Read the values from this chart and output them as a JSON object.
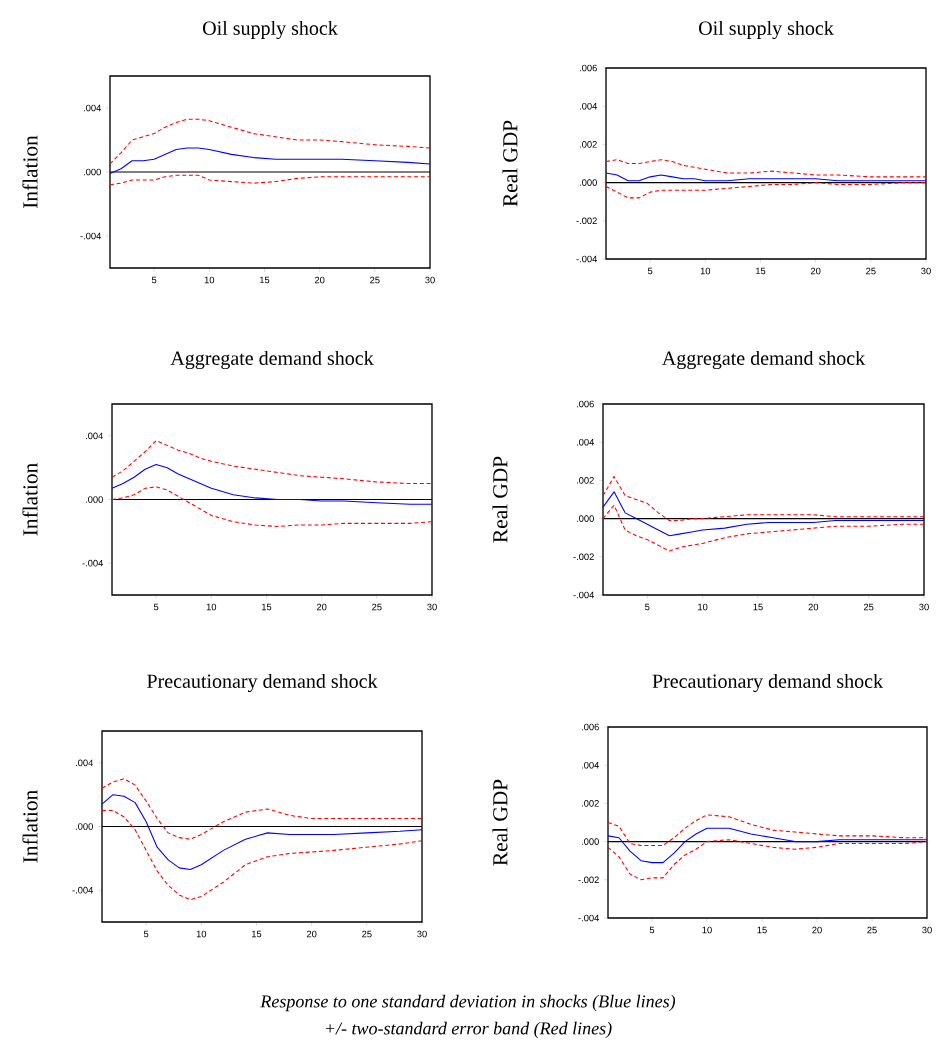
{
  "chart_data": [
    {
      "type": "line",
      "title": "Oil supply shock",
      "ylabel": "Inflation",
      "x": [
        1,
        2,
        3,
        4,
        5,
        6,
        7,
        8,
        9,
        10,
        12,
        14,
        16,
        18,
        20,
        22,
        25,
        28,
        30
      ],
      "xlim": [
        1,
        30
      ],
      "ylim": [
        -0.006,
        0.006
      ],
      "xticks": [
        5,
        10,
        15,
        20,
        25,
        30
      ],
      "yticks": [
        {
          "value": -0.004,
          "label": "-.004"
        },
        {
          "value": 0,
          "label": ".000"
        },
        {
          "value": 0.004,
          "label": ".004"
        }
      ],
      "ref_lines": [
        {
          "axis": "y",
          "value": 0,
          "color": "#000000"
        }
      ],
      "series": [
        {
          "color": "#ff0000",
          "line_style": "dashed",
          "values": [
            0.0005,
            0.0012,
            0.002,
            0.0022,
            0.0024,
            0.0028,
            0.0031,
            0.0033,
            0.0033,
            0.0032,
            0.0028,
            0.0024,
            0.0022,
            0.002,
            0.002,
            0.0019,
            0.0017,
            0.0016,
            0.0015
          ]
        },
        {
          "color": "#0000ff",
          "line_style": "solid",
          "values": [
            -0.0001,
            0.0002,
            0.0007,
            0.0007,
            0.0008,
            0.0011,
            0.0014,
            0.0015,
            0.0015,
            0.0014,
            0.0011,
            0.0009,
            0.0008,
            0.0008,
            0.0008,
            0.0008,
            0.0007,
            0.0006,
            0.0005
          ]
        },
        {
          "color": "#ff0000",
          "line_style": "dashed",
          "values": [
            -0.0008,
            -0.0007,
            -0.0005,
            -0.0005,
            -0.0005,
            -0.0003,
            -0.0002,
            -0.0002,
            -0.0002,
            -0.0005,
            -0.0006,
            -0.0007,
            -0.0006,
            -0.0004,
            -0.0003,
            -0.0003,
            -0.0003,
            -0.0003,
            -0.0003
          ]
        }
      ]
    },
    {
      "type": "line",
      "title": "Oil supply shock",
      "ylabel": "Real GDP",
      "x": [
        1,
        2,
        3,
        4,
        5,
        6,
        7,
        8,
        9,
        10,
        12,
        14,
        16,
        18,
        20,
        22,
        25,
        28,
        30
      ],
      "xlim": [
        1,
        30
      ],
      "ylim": [
        -0.004,
        0.006
      ],
      "xticks": [
        5,
        10,
        15,
        20,
        25,
        30
      ],
      "yticks": [
        {
          "value": -0.004,
          "label": "-.004"
        },
        {
          "value": -0.002,
          "label": "-.002"
        },
        {
          "value": 0,
          "label": ".000"
        },
        {
          "value": 0.002,
          "label": ".002"
        },
        {
          "value": 0.004,
          "label": ".004"
        },
        {
          "value": 0.006,
          "label": ".006"
        }
      ],
      "ref_lines": [
        {
          "axis": "y",
          "value": 0,
          "color": "#000000"
        }
      ],
      "series": [
        {
          "color": "#ff0000",
          "line_style": "dashed",
          "values": [
            0.0011,
            0.0012,
            0.001,
            0.001,
            0.0011,
            0.0012,
            0.0011,
            0.0009,
            0.0008,
            0.0007,
            0.0005,
            0.0005,
            0.0006,
            0.0005,
            0.0004,
            0.0004,
            0.0003,
            0.0003,
            0.0003
          ]
        },
        {
          "color": "#0000ff",
          "line_style": "solid",
          "values": [
            0.0005,
            0.0004,
            0.0001,
            0.0001,
            0.0003,
            0.0004,
            0.0003,
            0.0002,
            0.0002,
            0.0001,
            0.0001,
            0.0002,
            0.0002,
            0.0002,
            0.0002,
            0.0001,
            0.0001,
            0.0001,
            0.0001
          ]
        },
        {
          "color": "#ff0000",
          "line_style": "dashed",
          "values": [
            -0.0002,
            -0.0005,
            -0.0008,
            -0.0008,
            -0.0005,
            -0.0004,
            -0.0004,
            -0.0004,
            -0.0004,
            -0.0004,
            -0.0003,
            -0.0002,
            -0.0001,
            -0.0001,
            0,
            -0.0001,
            -0.0001,
            0,
            0
          ]
        }
      ]
    },
    {
      "type": "line",
      "title": "Aggregate demand shock",
      "ylabel": "Inflation",
      "x": [
        1,
        2,
        3,
        4,
        5,
        6,
        7,
        8,
        9,
        10,
        12,
        14,
        16,
        18,
        20,
        22,
        25,
        28,
        30
      ],
      "xlim": [
        1,
        30
      ],
      "ylim": [
        -0.006,
        0.006
      ],
      "xticks": [
        5,
        10,
        15,
        20,
        25,
        30
      ],
      "yticks": [
        {
          "value": -0.004,
          "label": "-.004"
        },
        {
          "value": 0,
          "label": ".000"
        },
        {
          "value": 0.004,
          "label": ".004"
        }
      ],
      "ref_lines": [
        {
          "axis": "y",
          "value": 0,
          "color": "#000000"
        }
      ],
      "series": [
        {
          "color": "#ff0000",
          "line_style": "dashed",
          "values": [
            0.0014,
            0.0018,
            0.0024,
            0.003,
            0.0037,
            0.0034,
            0.0031,
            0.0029,
            0.0026,
            0.0024,
            0.0021,
            0.0019,
            0.0017,
            0.0015,
            0.0014,
            0.0013,
            0.0011,
            0.001,
            0.001
          ]
        },
        {
          "color": "#0000ff",
          "line_style": "solid",
          "values": [
            0.0007,
            0.001,
            0.0014,
            0.0019,
            0.0022,
            0.002,
            0.0016,
            0.0013,
            0.001,
            0.0007,
            0.0003,
            0.0001,
            0,
            0,
            -0.0001,
            -0.0001,
            -0.0002,
            -0.0003,
            -0.0003
          ]
        },
        {
          "color": "#ff0000",
          "line_style": "dashed",
          "values": [
            0,
            0.0001,
            0.0003,
            0.0007,
            0.0008,
            0.0006,
            0.0002,
            -0.0002,
            -0.0006,
            -0.001,
            -0.0014,
            -0.0016,
            -0.0017,
            -0.0016,
            -0.0016,
            -0.0015,
            -0.0015,
            -0.0015,
            -0.0014
          ]
        }
      ]
    },
    {
      "type": "line",
      "title": "Aggregate demand shock",
      "ylabel": "Real GDP",
      "x": [
        1,
        2,
        3,
        4,
        5,
        6,
        7,
        8,
        9,
        10,
        12,
        14,
        16,
        18,
        20,
        22,
        25,
        28,
        30
      ],
      "xlim": [
        1,
        30
      ],
      "ylim": [
        -0.004,
        0.006
      ],
      "xticks": [
        5,
        10,
        15,
        20,
        25,
        30
      ],
      "yticks": [
        {
          "value": -0.004,
          "label": "-.004"
        },
        {
          "value": -0.002,
          "label": "-.002"
        },
        {
          "value": 0,
          "label": ".000"
        },
        {
          "value": 0.002,
          "label": ".002"
        },
        {
          "value": 0.004,
          "label": ".004"
        },
        {
          "value": 0.006,
          "label": ".006"
        }
      ],
      "ref_lines": [
        {
          "axis": "y",
          "value": 0,
          "color": "#000000"
        }
      ],
      "series": [
        {
          "color": "#ff0000",
          "line_style": "dashed",
          "values": [
            0.0012,
            0.0022,
            0.0012,
            0.001,
            0.0008,
            0.0003,
            -0.0001,
            -0.0001,
            0,
            0,
            0.0001,
            0.0002,
            0.0002,
            0.0002,
            0.0002,
            0.0001,
            0.0001,
            0.0001,
            0.0001
          ]
        },
        {
          "color": "#0000ff",
          "line_style": "solid",
          "values": [
            0.0006,
            0.0014,
            0.0003,
            0,
            -0.0003,
            -0.0006,
            -0.0009,
            -0.0008,
            -0.0007,
            -0.0006,
            -0.0005,
            -0.0003,
            -0.0002,
            -0.0002,
            -0.0002,
            -0.0001,
            -0.0001,
            -0.0001,
            -0.0001
          ]
        },
        {
          "color": "#ff0000",
          "line_style": "dashed",
          "values": [
            0,
            0.0007,
            -0.0006,
            -0.0009,
            -0.0011,
            -0.0014,
            -0.0017,
            -0.0015,
            -0.0014,
            -0.0013,
            -0.001,
            -0.0008,
            -0.0007,
            -0.0006,
            -0.0005,
            -0.0004,
            -0.0004,
            -0.0003,
            -0.0003
          ]
        }
      ]
    },
    {
      "type": "line",
      "title": "Precautionary demand shock",
      "ylabel": "Inflation",
      "x": [
        1,
        2,
        3,
        4,
        5,
        6,
        7,
        8,
        9,
        10,
        12,
        14,
        16,
        18,
        20,
        22,
        25,
        28,
        30
      ],
      "xlim": [
        1,
        30
      ],
      "ylim": [
        -0.006,
        0.006
      ],
      "xticks": [
        5,
        10,
        15,
        20,
        25,
        30
      ],
      "yticks": [
        {
          "value": -0.004,
          "label": "-.004"
        },
        {
          "value": 0,
          "label": ".000"
        },
        {
          "value": 0.004,
          "label": ".004"
        }
      ],
      "ref_lines": [
        {
          "axis": "y",
          "value": 0,
          "color": "#000000"
        }
      ],
      "series": [
        {
          "color": "#ff0000",
          "line_style": "dashed",
          "values": [
            0.0024,
            0.0028,
            0.003,
            0.0026,
            0.0016,
            0.0005,
            -0.0004,
            -0.0007,
            -0.0008,
            -0.0005,
            0.0003,
            0.0009,
            0.0011,
            0.0007,
            0.0005,
            0.0005,
            0.0005,
            0.0005,
            0.0005
          ]
        },
        {
          "color": "#0000ff",
          "line_style": "solid",
          "values": [
            0.0014,
            0.002,
            0.0019,
            0.0015,
            0.0003,
            -0.0013,
            -0.0021,
            -0.0026,
            -0.0027,
            -0.0024,
            -0.0015,
            -0.0008,
            -0.0004,
            -0.0005,
            -0.0005,
            -0.0005,
            -0.0004,
            -0.0003,
            -0.0002
          ]
        },
        {
          "color": "#ff0000",
          "line_style": "dashed",
          "values": [
            0.001,
            0.001,
            0.0006,
            -0.0002,
            -0.0015,
            -0.0028,
            -0.0037,
            -0.0043,
            -0.0046,
            -0.0044,
            -0.0035,
            -0.0024,
            -0.0019,
            -0.0017,
            -0.0016,
            -0.0015,
            -0.0013,
            -0.0011,
            -0.0009
          ]
        }
      ]
    },
    {
      "type": "line",
      "title": "Precautionary demand shock",
      "ylabel": "Real GDP",
      "x": [
        1,
        2,
        3,
        4,
        5,
        6,
        7,
        8,
        9,
        10,
        12,
        14,
        16,
        18,
        20,
        22,
        25,
        28,
        30
      ],
      "xlim": [
        1,
        30
      ],
      "ylim": [
        -0.004,
        0.006
      ],
      "xticks": [
        5,
        10,
        15,
        20,
        25,
        30
      ],
      "yticks": [
        {
          "value": -0.004,
          "label": "-.004"
        },
        {
          "value": -0.002,
          "label": "-.002"
        },
        {
          "value": 0,
          "label": ".000"
        },
        {
          "value": 0.002,
          "label": ".002"
        },
        {
          "value": 0.004,
          "label": ".004"
        },
        {
          "value": 0.006,
          "label": ".006"
        }
      ],
      "ref_lines": [
        {
          "axis": "y",
          "value": 0,
          "color": "#000000"
        }
      ],
      "annotations": [
        "*Response to one standard deviation in shocks (Blue lines)*",
        "*+/- two-standard error band (Red lines)*"
      ],
      "series": [
        {
          "color": "#ff0000",
          "line_style": "dashed",
          "values": [
            0.001,
            0.0008,
            -0.0001,
            -0.0002,
            -0.0002,
            -0.0002,
            0.0002,
            0.0007,
            0.0011,
            0.0014,
            0.0013,
            0.0009,
            0.0006,
            0.0005,
            0.0004,
            0.0003,
            0.0003,
            0.0002,
            0.0002
          ]
        },
        {
          "color": "#0000ff",
          "line_style": "solid",
          "values": [
            0.0003,
            0.0002,
            -0.0005,
            -0.001,
            -0.0011,
            -0.0011,
            -0.0006,
            0,
            0.0004,
            0.0007,
            0.0007,
            0.0004,
            0.0002,
            0,
            0,
            0.0001,
            0.0001,
            0.0001,
            0.0001
          ]
        },
        {
          "color": "#ff0000",
          "line_style": "dashed",
          "values": [
            -0.0003,
            -0.0008,
            -0.0017,
            -0.002,
            -0.0019,
            -0.0019,
            -0.0012,
            -0.0007,
            -0.0004,
            0,
            0.0001,
            -0.0001,
            -0.0003,
            -0.0004,
            -0.0003,
            -0.0001,
            -0.0001,
            -0.0001,
            0
          ]
        }
      ]
    }
  ]
}
